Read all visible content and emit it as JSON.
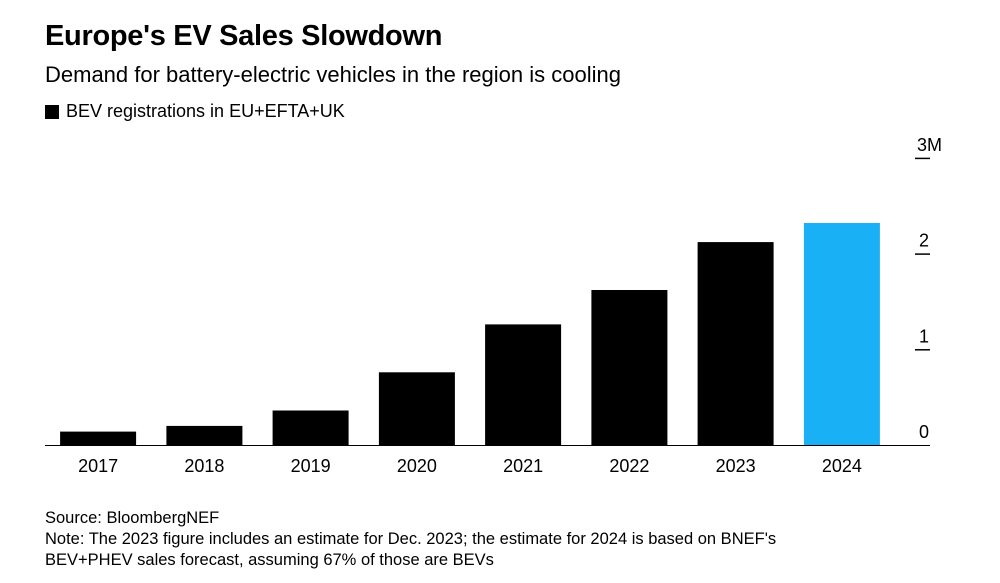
{
  "header": {
    "title": "Europe's EV Sales Slowdown",
    "subtitle": "Demand for battery-electric vehicles in the region is cooling"
  },
  "legend": {
    "label": "BEV registrations in EU+EFTA+UK",
    "color": "#000000"
  },
  "footer": {
    "source": "Source: BloombergNEF",
    "note_line1": "Note: The 2023 figure includes an estimate for Dec. 2023; the estimate for 2024 is based on BNEF's",
    "note_line2": "BEV+PHEV sales forecast, assuming 67% of those are BEVs"
  },
  "chart_data": {
    "type": "bar",
    "categories": [
      "2017",
      "2018",
      "2019",
      "2020",
      "2021",
      "2022",
      "2023",
      "2024"
    ],
    "series": [
      {
        "name": "BEV registrations in EU+EFTA+UK",
        "values": [
          0.14,
          0.2,
          0.36,
          0.76,
          1.26,
          1.62,
          2.12,
          2.32
        ]
      }
    ],
    "bar_colors": [
      "#000000",
      "#000000",
      "#000000",
      "#000000",
      "#000000",
      "#000000",
      "#000000",
      "#1ab0f5"
    ],
    "ylim": [
      0,
      3
    ],
    "y_ticks": [
      {
        "value": 0,
        "label": "0"
      },
      {
        "value": 1,
        "label": "1"
      },
      {
        "value": 2,
        "label": "2"
      },
      {
        "value": 3,
        "label": "3M"
      }
    ],
    "axis_position": "right",
    "grid": false,
    "legend_position": "top-left",
    "xlabel": "",
    "ylabel": ""
  }
}
